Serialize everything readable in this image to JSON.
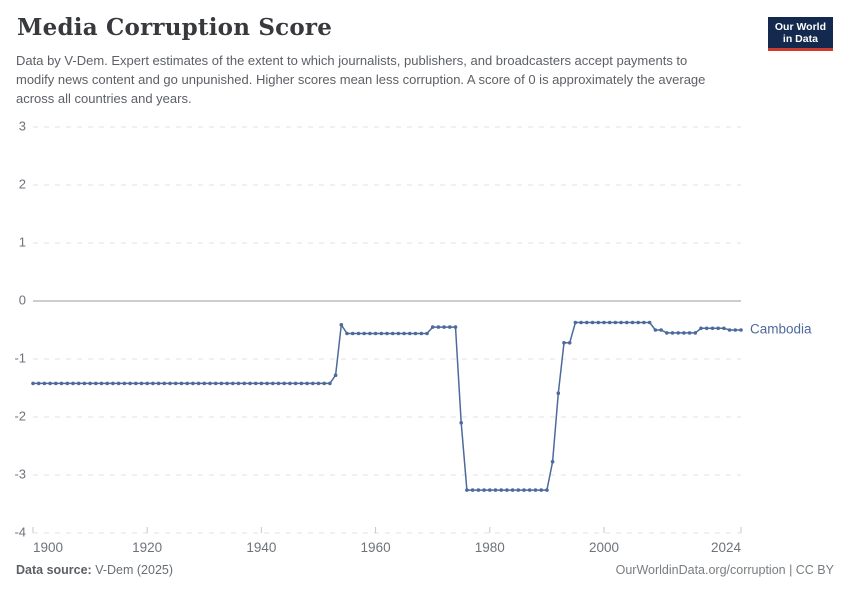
{
  "header": {
    "title": "Media Corruption Score",
    "subtitle": "Data by V-Dem. Expert estimates of the extent to which journalists, publishers, and broadcasters accept payments to modify news content and go unpunished. Higher scores mean less corruption. A score of 0 is approximately the average across all countries and years.",
    "logo": {
      "line1": "Our World",
      "line2": "in Data"
    }
  },
  "chart_data": {
    "type": "line",
    "title": "Media Corruption Score",
    "xlabel": "",
    "ylabel": "",
    "xlim": [
      1900,
      2024
    ],
    "ylim": [
      -4,
      3
    ],
    "x_ticks": [
      1900,
      1920,
      1940,
      1960,
      1980,
      2000,
      2024
    ],
    "y_ticks": [
      3,
      2,
      1,
      0,
      -1,
      -2,
      -3,
      -4
    ],
    "grid": "horizontal-dashed, zero-line-solid",
    "legend_position": "right-end-of-line",
    "series": [
      {
        "name": "Cambodia",
        "color": "#4c6a9c",
        "points_yearly_segments": [
          [
            1900,
            1952,
            -1.42
          ],
          [
            1953,
            1953,
            -1.28
          ],
          [
            1954,
            1954,
            -0.41
          ],
          [
            1955,
            1969,
            -0.56
          ],
          [
            1970,
            1974,
            -0.45
          ],
          [
            1975,
            1975,
            -2.1
          ],
          [
            1976,
            1990,
            -3.26
          ],
          [
            1991,
            1991,
            -2.77
          ],
          [
            1992,
            1992,
            -1.59
          ],
          [
            1993,
            1994,
            -0.72
          ],
          [
            1995,
            2008,
            -0.37
          ],
          [
            2009,
            2010,
            -0.5
          ],
          [
            2011,
            2016,
            -0.55
          ],
          [
            2017,
            2021,
            -0.47
          ],
          [
            2022,
            2024,
            -0.5
          ]
        ]
      }
    ]
  },
  "footer": {
    "source_label": "Data source:",
    "source_value": " V-Dem (2025)",
    "credit": "OurWorldinData.org/corruption | CC BY"
  },
  "colors": {
    "series_blue": "#4c6a9c",
    "logo_navy": "#13294d",
    "logo_red": "#cc3b2e",
    "grid_gray": "#e2e2e2",
    "zero_line_gray": "#9b9b9b",
    "tick_text_gray": "#6e737b"
  }
}
